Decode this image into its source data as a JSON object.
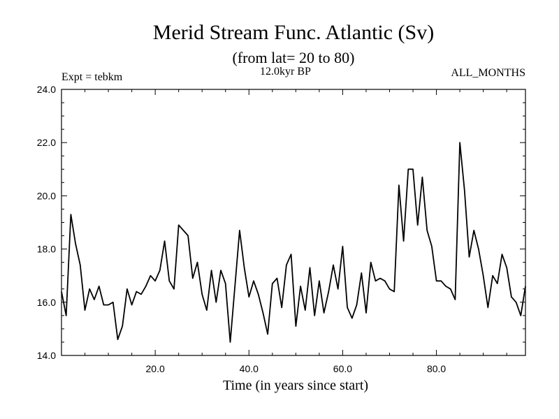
{
  "header": {
    "title": "Merid Stream Func. Atlantic (Sv)",
    "subtitle": "(from lat= 20 to 80)",
    "expt_label": "Expt = tebkm",
    "period_label": "12.0kyr BP",
    "months_label": "ALL_MONTHS"
  },
  "chart_data": {
    "type": "line",
    "title": "Merid Stream Func. Atlantic (Sv)",
    "subtitle": "(from lat= 20 to 80)",
    "xlabel": "Time (in years since start)",
    "ylabel": "",
    "xlim": [
      0,
      99
    ],
    "ylim": [
      14.0,
      24.0
    ],
    "xticks": [
      20,
      40,
      60,
      80
    ],
    "xtick_labels": [
      "20.0",
      "40.0",
      "60.0",
      "80.0"
    ],
    "yticks": [
      14,
      16,
      18,
      20,
      22,
      24
    ],
    "ytick_labels": [
      "14.0",
      "16.0",
      "18.0",
      "20.0",
      "22.0",
      "24.0"
    ],
    "grid": false,
    "series": [
      {
        "name": "tebkm",
        "x": [
          0,
          1,
          2,
          3,
          4,
          5,
          6,
          7,
          8,
          9,
          10,
          11,
          12,
          13,
          14,
          15,
          16,
          17,
          18,
          19,
          20,
          21,
          22,
          23,
          24,
          25,
          26,
          27,
          28,
          29,
          30,
          31,
          32,
          33,
          34,
          35,
          36,
          37,
          38,
          39,
          40,
          41,
          42,
          43,
          44,
          45,
          46,
          47,
          48,
          49,
          50,
          51,
          52,
          53,
          54,
          55,
          56,
          57,
          58,
          59,
          60,
          61,
          62,
          63,
          64,
          65,
          66,
          67,
          68,
          69,
          70,
          71,
          72,
          73,
          74,
          75,
          76,
          77,
          78,
          79,
          80,
          81,
          82,
          83,
          84,
          85,
          86,
          87,
          88,
          89,
          90,
          91,
          92,
          93,
          94,
          95,
          96,
          97,
          98,
          99
        ],
        "values": [
          16.4,
          15.5,
          19.3,
          18.2,
          17.4,
          15.7,
          16.5,
          16.1,
          16.6,
          15.9,
          15.9,
          16.0,
          14.6,
          15.1,
          16.5,
          15.9,
          16.4,
          16.3,
          16.6,
          17.0,
          16.8,
          17.2,
          18.3,
          16.8,
          16.5,
          18.9,
          18.7,
          18.5,
          16.9,
          17.5,
          16.3,
          15.7,
          17.2,
          16.0,
          17.2,
          16.7,
          14.5,
          16.6,
          18.7,
          17.3,
          16.2,
          16.8,
          16.3,
          15.6,
          14.8,
          16.7,
          16.9,
          15.8,
          17.4,
          17.8,
          15.1,
          16.6,
          15.7,
          17.3,
          15.5,
          16.8,
          15.6,
          16.4,
          17.4,
          16.5,
          18.1,
          15.8,
          15.4,
          15.9,
          17.1,
          15.6,
          17.5,
          16.8,
          16.9,
          16.8,
          16.5,
          16.4,
          20.4,
          18.3,
          21.0,
          21.0,
          18.9,
          20.7,
          18.7,
          18.1,
          16.8,
          16.8,
          16.6,
          16.5,
          16.1,
          22.0,
          20.2,
          17.7,
          18.7,
          18.0,
          17.0,
          15.8,
          17.0,
          16.7,
          17.8,
          17.3,
          16.2,
          16.0,
          15.5,
          16.6
        ]
      }
    ]
  }
}
